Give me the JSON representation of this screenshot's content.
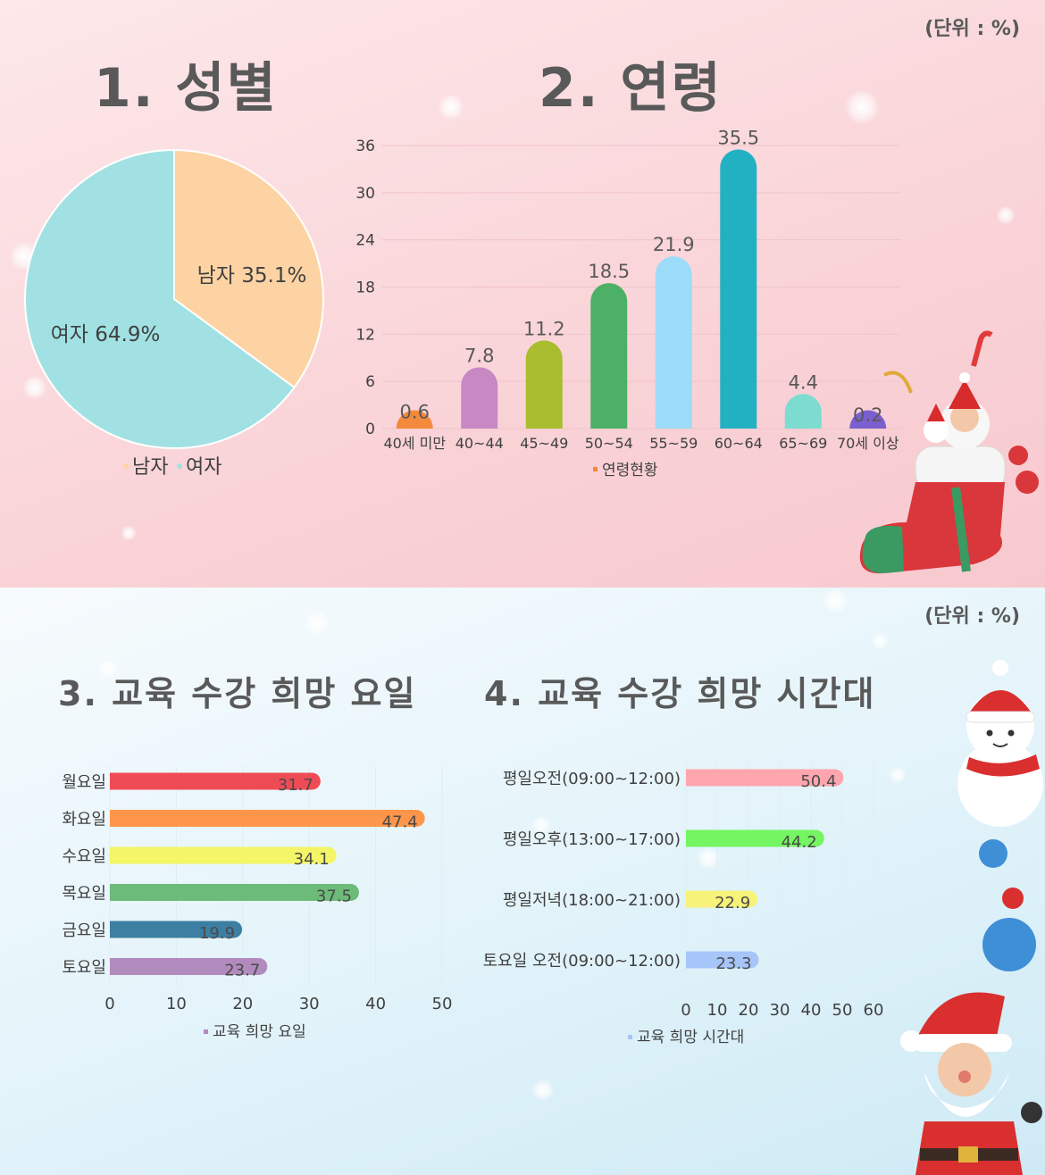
{
  "top": {
    "unit": "(단위 : %)",
    "gender_title": "1. 성별",
    "age_title": "2. 연령"
  },
  "bottom": {
    "unit": "(단위 : %)",
    "day_title": "3. 교육 수강 희망 요일",
    "time_title": "4. 교육 수강 희망 시간대"
  },
  "colors": {
    "male": "#fdd3a3",
    "female": "#a1e1e3",
    "age": [
      "#f4893b",
      "#c888c4",
      "#a9bd2e",
      "#4cb066",
      "#9ddcf8",
      "#22b1c3",
      "#7ddcd0",
      "#7b5fd0"
    ],
    "days": [
      "#ef4b55",
      "#fd964a",
      "#f4f567",
      "#6cbb78",
      "#3c7fa2",
      "#b28bbe"
    ],
    "times": [
      "#ffa5ae",
      "#74f562",
      "#f6f27a",
      "#a6c6f9"
    ]
  },
  "chart_data": [
    {
      "type": "pie",
      "categories": [
        "남자",
        "여자"
      ],
      "values": [
        35.1,
        64.9
      ],
      "data_labels": [
        "남자 35.1%",
        "여자 64.9%"
      ],
      "legend": [
        "남자",
        "여자"
      ],
      "legend_position": "bottom"
    },
    {
      "type": "bar",
      "categories": [
        "40세 미만",
        "40~44",
        "45~49",
        "50~54",
        "55~59",
        "60~64",
        "65~69",
        "70세 이상"
      ],
      "series": [
        {
          "name": "연령현황",
          "values": [
            0.6,
            7.8,
            11.2,
            18.5,
            21.9,
            35.5,
            4.4,
            0.2
          ]
        }
      ],
      "ylim": [
        0,
        36
      ],
      "yticks": [
        0,
        6,
        12,
        18,
        24,
        30,
        36
      ],
      "grid": true,
      "legend": [
        "연령현황"
      ],
      "legend_position": "bottom"
    },
    {
      "type": "bar",
      "orientation": "horizontal",
      "categories": [
        "월요일",
        "화요일",
        "수요일",
        "목요일",
        "금요일",
        "토요일"
      ],
      "series": [
        {
          "name": "교육 희망 요일",
          "values": [
            31.7,
            47.4,
            34.1,
            37.5,
            19.9,
            23.7
          ]
        }
      ],
      "xlim": [
        0,
        50
      ],
      "xticks": [
        0,
        10,
        20,
        30,
        40,
        50
      ],
      "grid": true,
      "legend": [
        "교육 희망 요일"
      ],
      "legend_position": "bottom"
    },
    {
      "type": "bar",
      "orientation": "horizontal",
      "categories": [
        "평일오전(09:00~12:00)",
        "평일오후(13:00~17:00)",
        "평일저녁(18:00~21:00)",
        "토요일 오전(09:00~12:00)"
      ],
      "series": [
        {
          "name": "교육 희망 시간대",
          "values": [
            50.4,
            44.2,
            22.9,
            23.3
          ]
        }
      ],
      "xlim": [
        0,
        60
      ],
      "xticks": [
        0,
        10,
        20,
        30,
        40,
        50,
        60
      ],
      "grid": true,
      "legend": [
        "교육 희망 시간대"
      ],
      "legend_position": "bottom"
    }
  ]
}
